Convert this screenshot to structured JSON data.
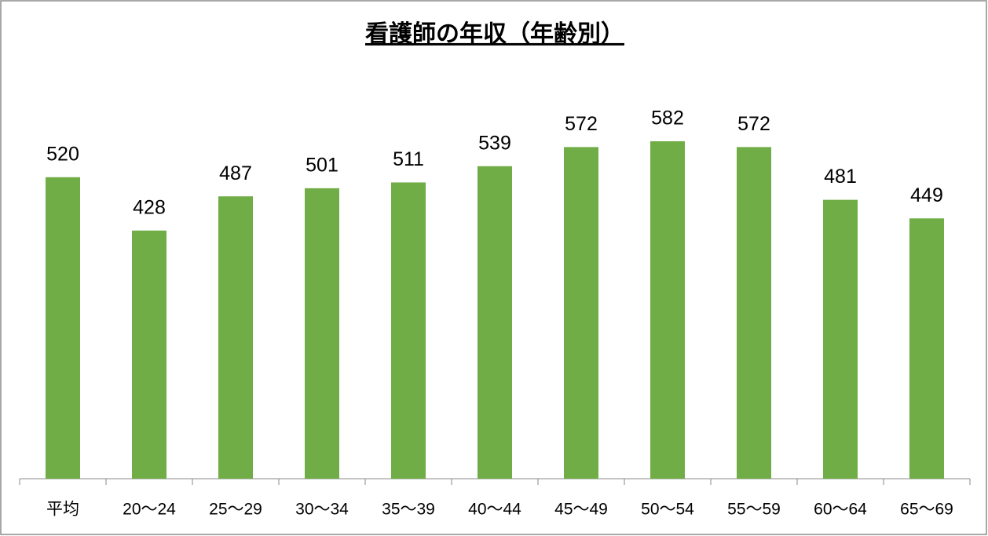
{
  "chart_data": {
    "type": "bar",
    "title": "看護師の年収（年齢別）",
    "categories": [
      "平均",
      "20〜24",
      "25〜29",
      "30〜34",
      "35〜39",
      "40〜44",
      "45〜49",
      "50〜54",
      "55〜59",
      "60〜64",
      "65〜69"
    ],
    "values": [
      520,
      428,
      487,
      501,
      511,
      539,
      572,
      582,
      572,
      481,
      449
    ],
    "color": "#70ad47"
  }
}
